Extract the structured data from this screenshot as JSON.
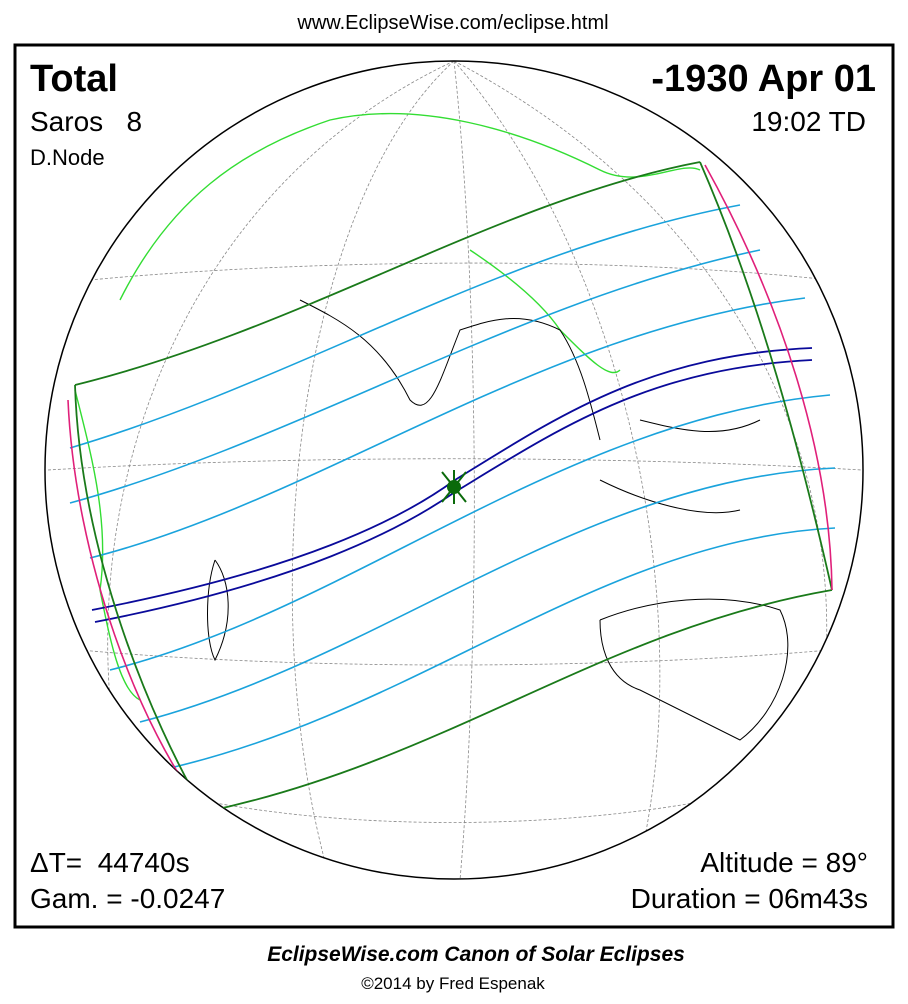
{
  "header": {
    "url": "www.EclipseWise.com/eclipse.html"
  },
  "panel": {
    "eclipse_type": "Total",
    "date": "-1930 Apr 01",
    "saros": "Saros   8",
    "time": "19:02 TD",
    "node": "D.Node",
    "delta_t": "ΔT=  44740s",
    "gamma": "Gam. = -0.0247",
    "altitude": "Altitude = 89°",
    "duration": "Duration = 06m43s"
  },
  "footer": {
    "title": "EclipseWise.com Canon of Solar Eclipses",
    "copyright": "©2014 by Fred Espenak"
  }
}
